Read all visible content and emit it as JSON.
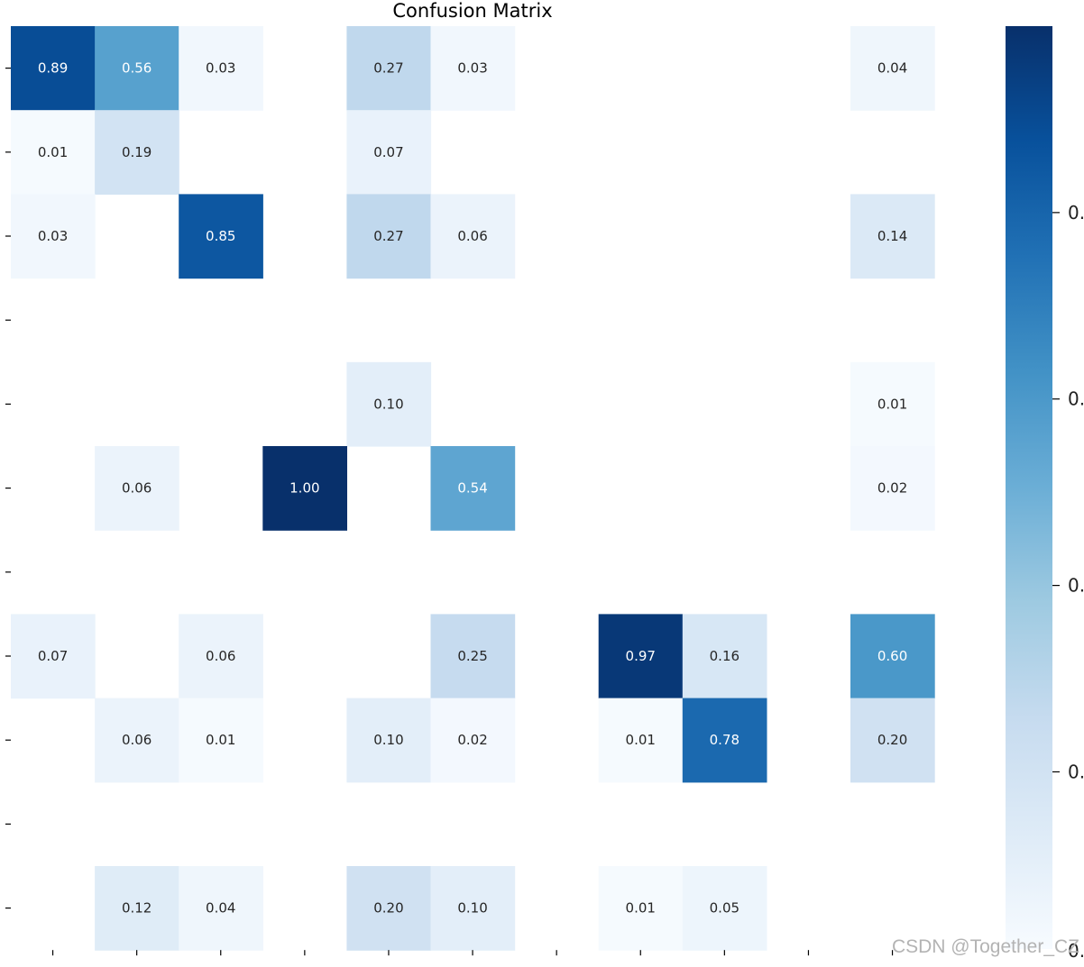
{
  "chart_data": {
    "type": "heatmap",
    "title": "Confusion Matrix",
    "xlabel": "",
    "ylabel": "",
    "n_rows": 11,
    "n_cols": 11,
    "colormap": "Blues",
    "color_scale": [
      0,
      1
    ],
    "annotation_format": "0.00",
    "empty_cells": "white (no label)",
    "cells": [
      {
        "row": 0,
        "col": 0,
        "value": 0.89
      },
      {
        "row": 0,
        "col": 1,
        "value": 0.56
      },
      {
        "row": 0,
        "col": 2,
        "value": 0.03
      },
      {
        "row": 0,
        "col": 4,
        "value": 0.27
      },
      {
        "row": 0,
        "col": 5,
        "value": 0.03
      },
      {
        "row": 0,
        "col": 10,
        "value": 0.04
      },
      {
        "row": 1,
        "col": 0,
        "value": 0.01
      },
      {
        "row": 1,
        "col": 1,
        "value": 0.19
      },
      {
        "row": 1,
        "col": 4,
        "value": 0.07
      },
      {
        "row": 2,
        "col": 0,
        "value": 0.03
      },
      {
        "row": 2,
        "col": 2,
        "value": 0.85
      },
      {
        "row": 2,
        "col": 4,
        "value": 0.27
      },
      {
        "row": 2,
        "col": 5,
        "value": 0.06
      },
      {
        "row": 2,
        "col": 10,
        "value": 0.14
      },
      {
        "row": 4,
        "col": 4,
        "value": 0.1
      },
      {
        "row": 4,
        "col": 10,
        "value": 0.01
      },
      {
        "row": 5,
        "col": 1,
        "value": 0.06
      },
      {
        "row": 5,
        "col": 3,
        "value": 1.0
      },
      {
        "row": 5,
        "col": 5,
        "value": 0.54
      },
      {
        "row": 5,
        "col": 10,
        "value": 0.02
      },
      {
        "row": 7,
        "col": 0,
        "value": 0.07
      },
      {
        "row": 7,
        "col": 2,
        "value": 0.06
      },
      {
        "row": 7,
        "col": 5,
        "value": 0.25
      },
      {
        "row": 7,
        "col": 7,
        "value": 0.97
      },
      {
        "row": 7,
        "col": 8,
        "value": 0.16
      },
      {
        "row": 7,
        "col": 10,
        "value": 0.6
      },
      {
        "row": 8,
        "col": 1,
        "value": 0.06
      },
      {
        "row": 8,
        "col": 2,
        "value": 0.01
      },
      {
        "row": 8,
        "col": 4,
        "value": 0.1
      },
      {
        "row": 8,
        "col": 5,
        "value": 0.02
      },
      {
        "row": 8,
        "col": 7,
        "value": 0.01
      },
      {
        "row": 8,
        "col": 8,
        "value": 0.78
      },
      {
        "row": 8,
        "col": 10,
        "value": 0.2
      },
      {
        "row": 10,
        "col": 1,
        "value": 0.12
      },
      {
        "row": 10,
        "col": 2,
        "value": 0.04
      },
      {
        "row": 10,
        "col": 4,
        "value": 0.2
      },
      {
        "row": 10,
        "col": 5,
        "value": 0.1
      },
      {
        "row": 10,
        "col": 7,
        "value": 0.01
      },
      {
        "row": 10,
        "col": 8,
        "value": 0.05
      }
    ],
    "colorbar": {
      "orientation": "vertical",
      "location": "right",
      "tick_values": [
        0.2,
        0.4,
        0.6,
        0.8
      ],
      "tick_labels": [
        "0.",
        "0.",
        "0.",
        "0."
      ],
      "bottom_label_fragment": "0."
    },
    "grid": false,
    "legend": "none"
  },
  "watermark": "CSDN @Together_CZ",
  "colors": {
    "background": "#ffffff",
    "text_dark": "#262626",
    "text_light": "#ffffff",
    "cmap_stops": [
      "#f7fbff",
      "#deebf7",
      "#c6dbef",
      "#9ecae1",
      "#6baed6",
      "#4292c6",
      "#2171b5",
      "#08519c",
      "#08306b"
    ]
  }
}
